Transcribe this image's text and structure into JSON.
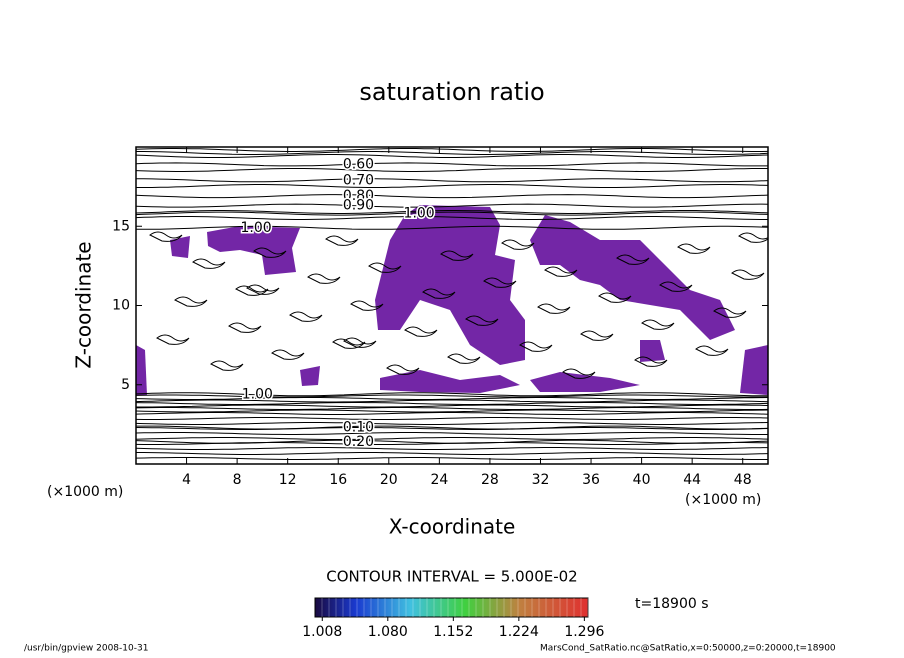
{
  "chart_data": {
    "type": "contour",
    "title": "saturation ratio",
    "x_label": "X-coordinate",
    "y_label": "Z-coordinate",
    "x_unit": "(×1000 m)",
    "y_unit": "(×1000 m)",
    "xlim": [
      0,
      50
    ],
    "xticks": [
      4,
      8,
      12,
      16,
      20,
      24,
      28,
      32,
      36,
      40,
      44,
      48
    ],
    "ylim": [
      0,
      20
    ],
    "yticks": [
      5,
      10,
      15
    ],
    "fill_color": "#7326a6",
    "contours": [
      {
        "value": 0.6,
        "label": "0.60",
        "x": 17.6,
        "z": 18.9
      },
      {
        "value": 0.7,
        "label": "0.70",
        "x": 17.6,
        "z": 17.9
      },
      {
        "value": 0.8,
        "label": "0.80",
        "x": 17.6,
        "z": 16.9
      },
      {
        "value": 0.9,
        "label": "0.90",
        "x": 17.6,
        "z": 16.3
      },
      {
        "value": 1.0,
        "label": "1.00",
        "x": 9.5,
        "z": 14.9
      },
      {
        "value": 1.0,
        "label": "1.00",
        "x": 22.4,
        "z": 15.8
      },
      {
        "value": 1.0,
        "label": "1.00",
        "x": 9.6,
        "z": 4.4
      },
      {
        "value": 0.1,
        "label": "0.10",
        "x": 17.6,
        "z": 2.3
      },
      {
        "value": 0.2,
        "label": "0.20",
        "x": 17.6,
        "z": 1.4
      }
    ],
    "contour_interval": "CONTOUR INTERVAL = 5.000E-02",
    "colorbar": {
      "lim": [
        1.0,
        1.3
      ],
      "ticks": [
        1.008,
        {
          "value": 1.08,
          "label": "1.080"
        },
        1.152,
        1.224,
        1.296
      ]
    },
    "time_label": "t=18900 s",
    "footer_left": "/usr/bin/gpview   2008-10-31",
    "footer_right": "MarsCond_SatRatio.nc@SatRatio,x=0:50000,z=0:20000,t=18900"
  }
}
